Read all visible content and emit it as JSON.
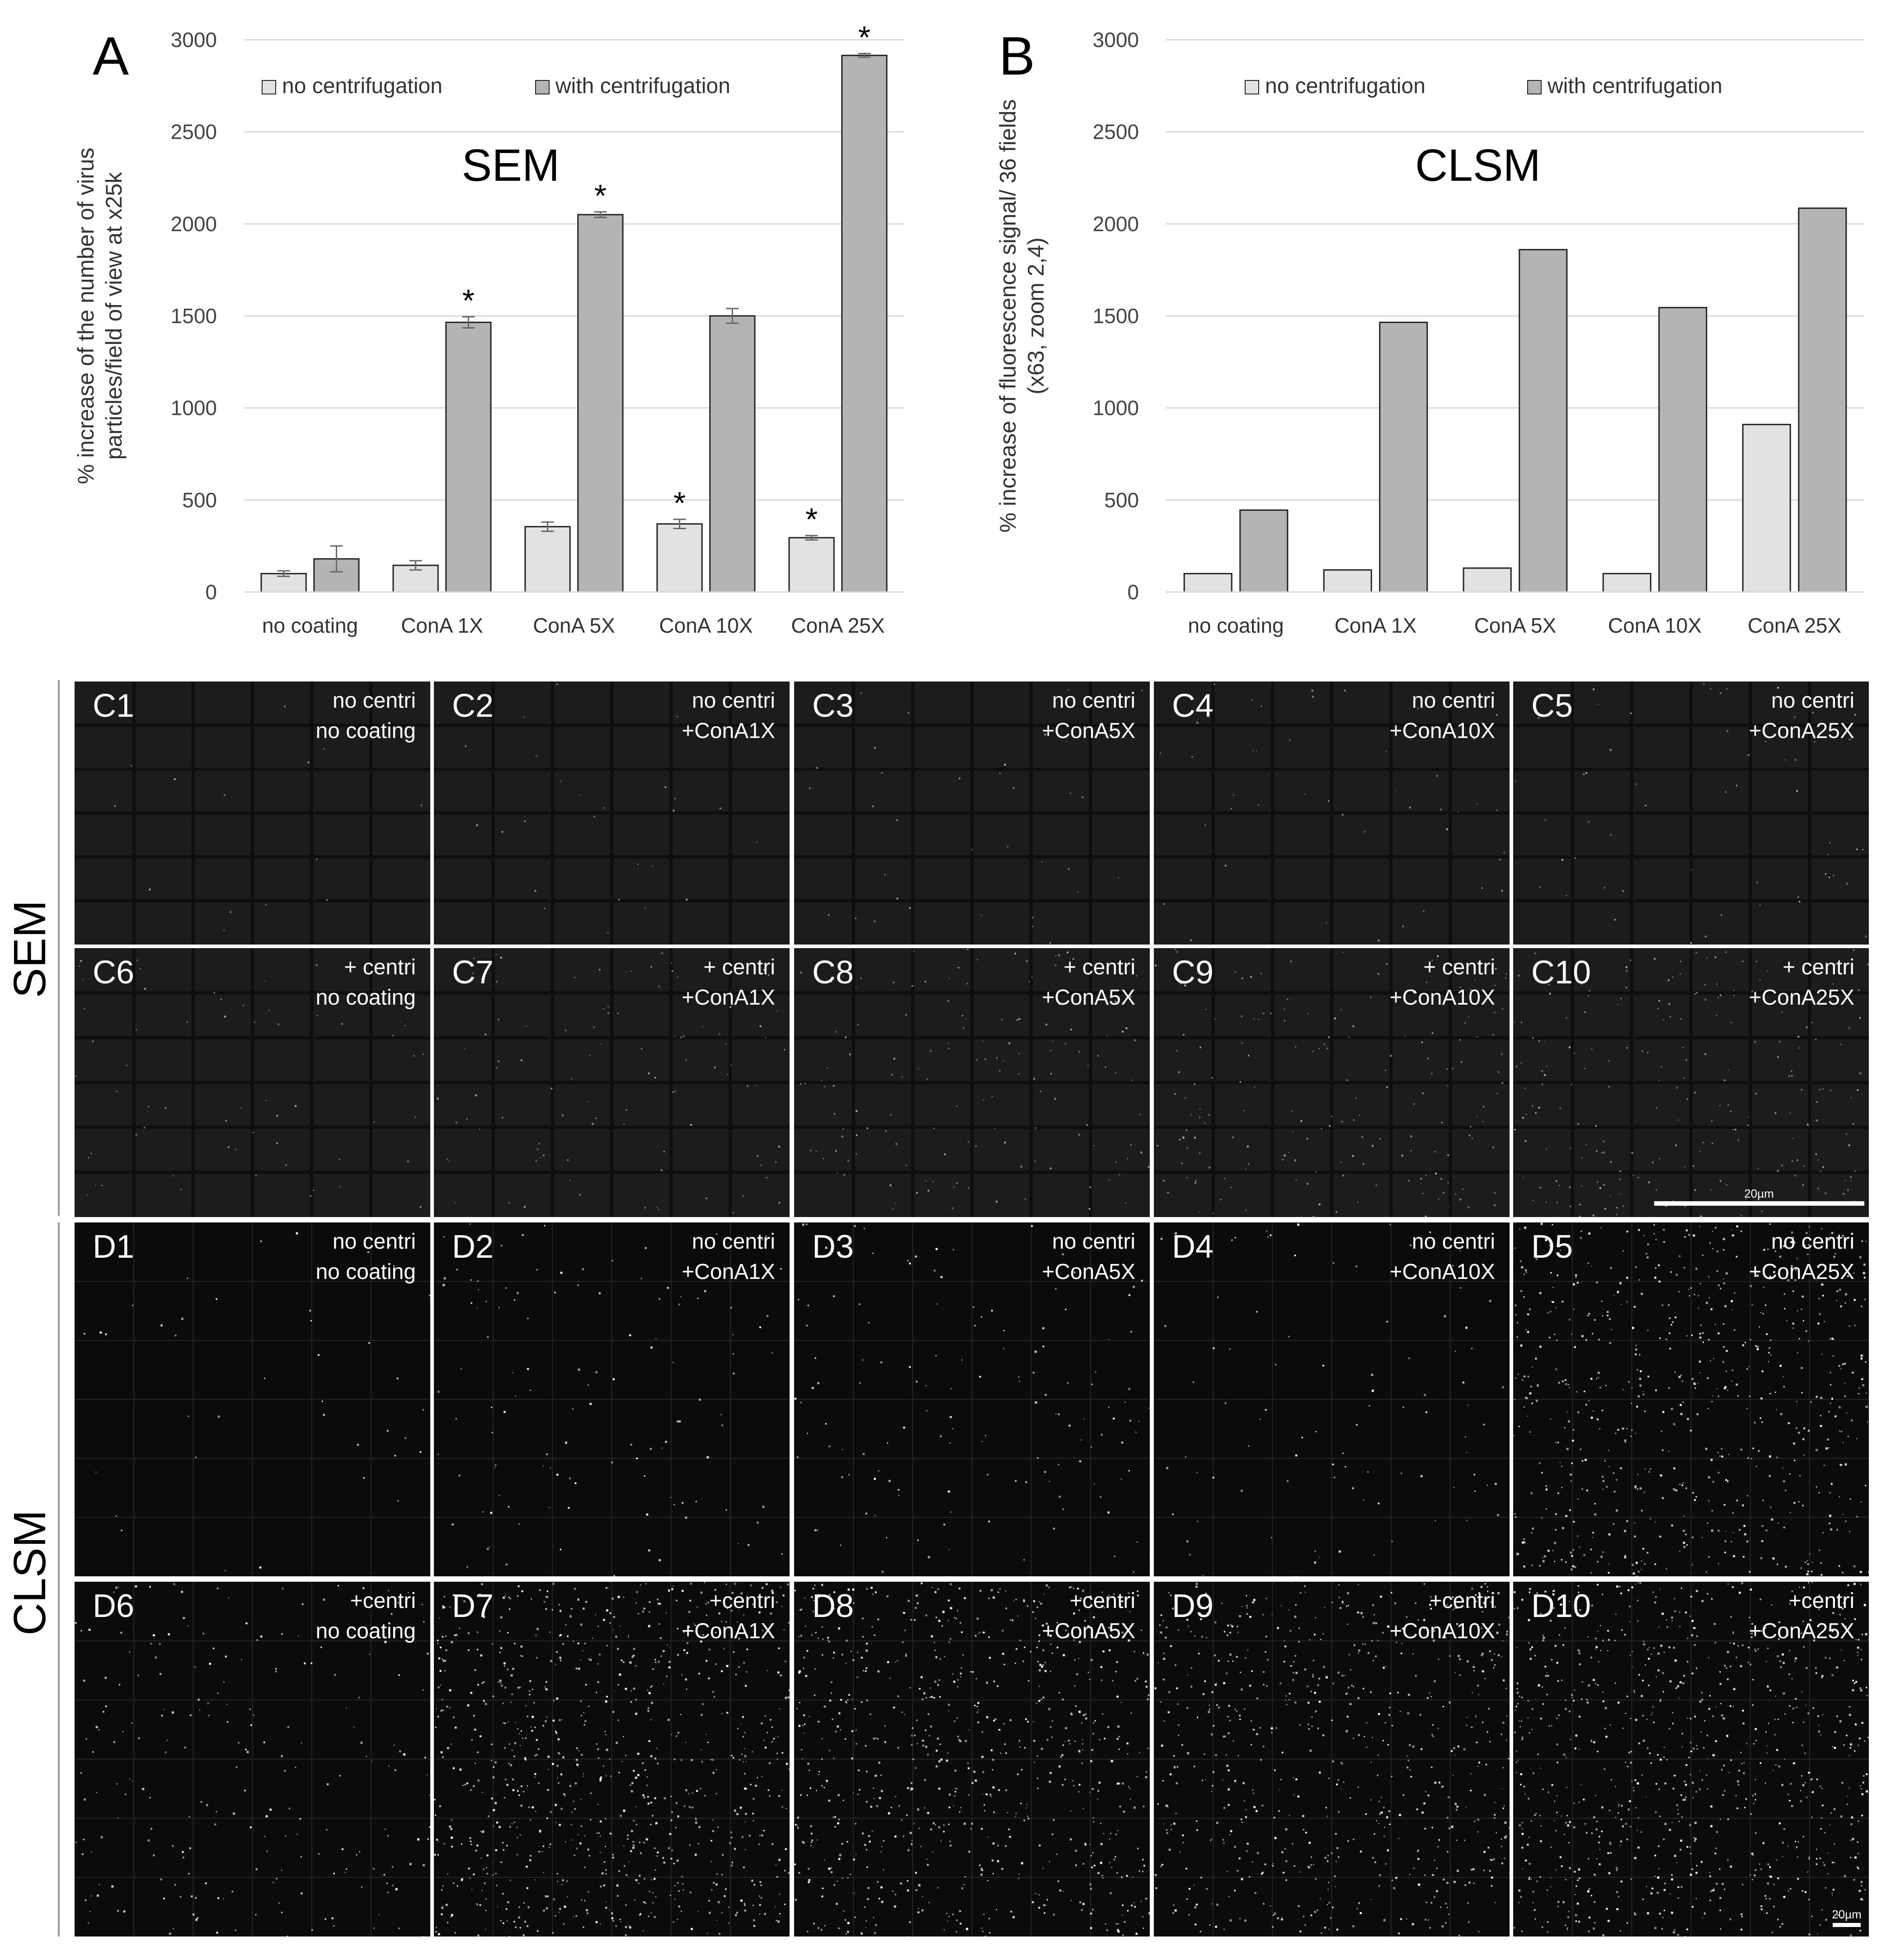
{
  "chart_data": [
    {
      "panel": "A",
      "type": "bar",
      "title": "SEM",
      "ylabel": "% increase of the number of virus particles/field of view at x25k",
      "ylim": [
        0,
        3000
      ],
      "yticks": [
        "0",
        "500",
        "1000",
        "1500",
        "2000",
        "2500",
        "3000"
      ],
      "categories": [
        "no coating",
        "ConA 1X",
        "ConA 5X",
        "ConA 10X",
        "ConA 25X"
      ],
      "series": [
        {
          "name": "no centrifugation",
          "color": "#e2e2e2",
          "values": [
            100,
            145,
            355,
            370,
            295
          ],
          "errors": [
            15,
            25,
            25,
            25,
            12
          ],
          "sig": [
            false,
            false,
            false,
            true,
            true
          ]
        },
        {
          "name": "with centrifugation",
          "color": "#b4b4b4",
          "values": [
            180,
            1465,
            2050,
            1500,
            2915
          ],
          "errors": [
            70,
            30,
            15,
            40,
            10
          ],
          "sig": [
            false,
            true,
            true,
            false,
            true
          ]
        }
      ],
      "grid": "horizontal",
      "legend": "top"
    },
    {
      "panel": "B",
      "type": "bar",
      "title": "CLSM",
      "ylabel": "% increase of fluorescence signal/ 36 fields (x63, zoom 2,4)",
      "ylim": [
        0,
        3000
      ],
      "yticks": [
        "0",
        "500",
        "1000",
        "1500",
        "2000",
        "2500",
        "3000"
      ],
      "categories": [
        "no coating",
        "ConA 1X",
        "ConA 5X",
        "ConA 10X",
        "ConA 25X"
      ],
      "series": [
        {
          "name": "no centrifugation",
          "color": "#e2e2e2",
          "values": [
            100,
            120,
            130,
            100,
            910
          ]
        },
        {
          "name": "with centrifugation",
          "color": "#b4b4b4",
          "values": [
            445,
            1465,
            1860,
            1545,
            2085
          ]
        }
      ],
      "grid": "horizontal",
      "legend": "top"
    }
  ],
  "star": "*",
  "row_labels": {
    "sem": "SEM",
    "clsm": "CLSM"
  },
  "image_panels": {
    "sem": [
      {
        "id": "C1",
        "line1": "no centri",
        "line2": "no coating"
      },
      {
        "id": "C2",
        "line1": "no centri",
        "line2": "+ConA1X"
      },
      {
        "id": "C3",
        "line1": "no centri",
        "line2": "+ConA5X"
      },
      {
        "id": "C4",
        "line1": "no centri",
        "line2": "+ConA10X"
      },
      {
        "id": "C5",
        "line1": "no centri",
        "line2": "+ConA25X"
      },
      {
        "id": "C6",
        "line1": "+ centri",
        "line2": "no coating"
      },
      {
        "id": "C7",
        "line1": "+ centri",
        "line2": "+ConA1X"
      },
      {
        "id": "C8",
        "line1": "+ centri",
        "line2": "+ConA5X"
      },
      {
        "id": "C9",
        "line1": "+ centri",
        "line2": "+ConA10X"
      },
      {
        "id": "C10",
        "line1": "+ centri",
        "line2": "+ConA25X"
      }
    ],
    "clsm": [
      {
        "id": "D1",
        "line1": "no centri",
        "line2": "no coating"
      },
      {
        "id": "D2",
        "line1": "no centri",
        "line2": "+ConA1X"
      },
      {
        "id": "D3",
        "line1": "no centri",
        "line2": "+ConA5X"
      },
      {
        "id": "D4",
        "line1": "no centri",
        "line2": "+ConA10X"
      },
      {
        "id": "D5",
        "line1": "no centri",
        "line2": "+ConA25X"
      },
      {
        "id": "D6",
        "line1": "+centri",
        "line2": "no coating"
      },
      {
        "id": "D7",
        "line1": "+centri",
        "line2": "+ConA1X"
      },
      {
        "id": "D8",
        "line1": "+centri",
        "line2": "+ConA5X"
      },
      {
        "id": "D9",
        "line1": "+centri",
        "line2": "+ConA10X"
      },
      {
        "id": "D10",
        "line1": "+centri",
        "line2": "+ConA25X"
      }
    ]
  },
  "scale_bars": {
    "sem": "20µm",
    "clsm": "20µm"
  },
  "colors": {
    "panel_bg": "#0b0b0b",
    "sem_bg": "#1c1c1c",
    "grid": "#d9d9d9",
    "bar_edge": "#222222"
  }
}
